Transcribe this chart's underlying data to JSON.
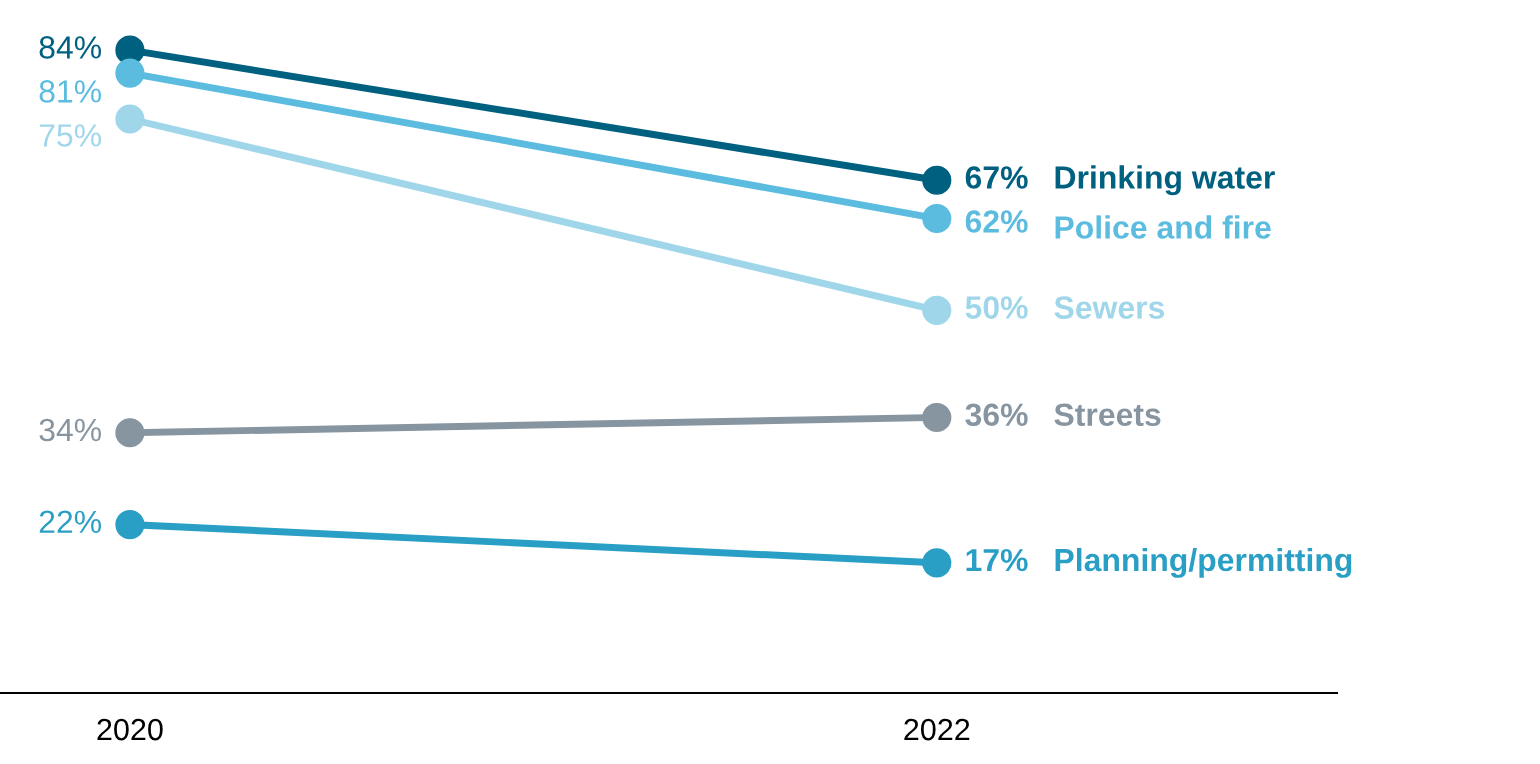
{
  "chart_data": {
    "type": "line",
    "categories": [
      "2020",
      "2022"
    ],
    "marker": "circle",
    "legend": false,
    "grid": false,
    "series": [
      {
        "name": "Drinking water",
        "color": "#00607f",
        "values": [
          84,
          67
        ],
        "value_labels": [
          "84%",
          "67%"
        ]
      },
      {
        "name": "Police and fire",
        "color": "#5bbce0",
        "values": [
          81,
          62
        ],
        "value_labels": [
          "81%",
          "62%"
        ]
      },
      {
        "name": "Sewers",
        "color": "#9fd6ea",
        "values": [
          75,
          50
        ],
        "value_labels": [
          "75%",
          "50%"
        ]
      },
      {
        "name": "Streets",
        "color": "#8795a1",
        "values": [
          34,
          36
        ],
        "value_labels": [
          "34%",
          "36%"
        ]
      },
      {
        "name": "Planning/permitting",
        "color": "#2a9fc5",
        "values": [
          22,
          17
        ],
        "value_labels": [
          "22%",
          "17%"
        ]
      }
    ]
  }
}
